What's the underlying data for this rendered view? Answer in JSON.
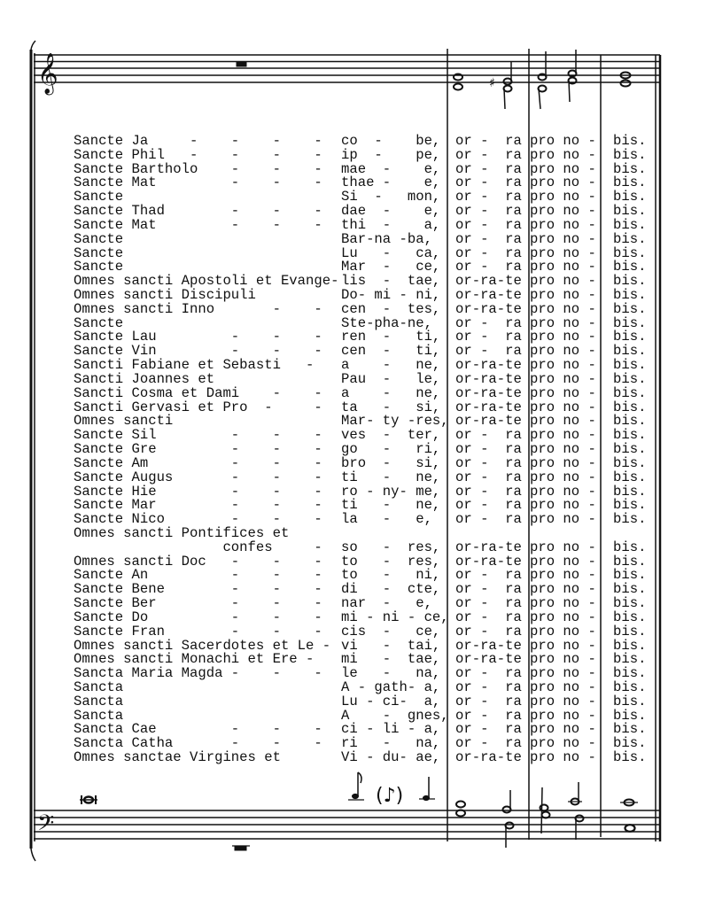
{
  "rows": [
    {
      "left": "Sancte Ja     -    -    -    -",
      "mid": "co  -    be,",
      "ora": "or -  ra",
      "pro": "pro no -",
      "bis": "bis."
    },
    {
      "left": "Sancte Phil   -    -    -    -",
      "mid": "ip  -    pe,",
      "ora": "or -  ra",
      "pro": "pro no -",
      "bis": "bis."
    },
    {
      "left": "Sancte Bartholo    -    -    -",
      "mid": "mae  -    e,",
      "ora": "or -  ra",
      "pro": "pro no -",
      "bis": "bis."
    },
    {
      "left": "Sancte Mat         -    -    -",
      "mid": "thae -    e,",
      "ora": "or -  ra",
      "pro": "pro no -",
      "bis": "bis."
    },
    {
      "left": "Sancte",
      "mid": "Si  -   mon,",
      "ora": "or -  ra",
      "pro": "pro no -",
      "bis": "bis."
    },
    {
      "left": "Sancte Thad        -    -    -",
      "mid": "dae  -    e,",
      "ora": "or -  ra",
      "pro": "pro no -",
      "bis": "bis."
    },
    {
      "left": "Sancte Mat         -    -    -",
      "mid": "thi  -    a,",
      "ora": "or -  ra",
      "pro": "pro no -",
      "bis": "bis."
    },
    {
      "left": "Sancte",
      "mid": "Bar-na -ba,",
      "ora": "or -  ra",
      "pro": "pro no -",
      "bis": "bis."
    },
    {
      "left": "Sancte",
      "mid": "Lu   -   ca,",
      "ora": "or -  ra",
      "pro": "pro no -",
      "bis": "bis."
    },
    {
      "left": "Sancte",
      "mid": "Mar  -   ce,",
      "ora": "or -  ra",
      "pro": "pro no -",
      "bis": "bis."
    },
    {
      "left": "Omnes sancti Apostoli et Evange-",
      "mid": "lis  -  tae,",
      "ora": "or-ra-te",
      "pro": "pro no -",
      "bis": "bis."
    },
    {
      "left": "Omnes sancti Discipuli",
      "mid": "Do- mi - ni,",
      "ora": "or-ra-te",
      "pro": "pro no -",
      "bis": "bis."
    },
    {
      "left": "Omnes sancti Inno       -    -",
      "mid": "cen  -  tes,",
      "ora": "or-ra-te",
      "pro": "pro no -",
      "bis": "bis."
    },
    {
      "left": "Sancte",
      "mid": "Ste-pha-ne,",
      "ora": "or -  ra",
      "pro": "pro no -",
      "bis": "bis."
    },
    {
      "left": "Sancte Lau         -    -    -",
      "mid": "ren  -   ti,",
      "ora": "or -  ra",
      "pro": "pro no -",
      "bis": "bis."
    },
    {
      "left": "Sancte Vin         -    -    -",
      "mid": "cen  -   ti,",
      "ora": "or -  ra",
      "pro": "pro no -",
      "bis": "bis."
    },
    {
      "left": "Sancti Fabiane et Sebasti   -",
      "mid": "a    -   ne,",
      "ora": "or-ra-te",
      "pro": "pro no -",
      "bis": "bis."
    },
    {
      "left": "Sancti Joannes et",
      "mid": "Pau  -   le,",
      "ora": "or-ra-te",
      "pro": "pro no -",
      "bis": "bis."
    },
    {
      "left": "Sancti Cosma et Dami    -    -",
      "mid": "a    -   ne,",
      "ora": "or-ra-te",
      "pro": "pro no -",
      "bis": "bis."
    },
    {
      "left": "Sancti Gervasi et Pro  -     -",
      "mid": "ta   -   si,",
      "ora": "or-ra-te",
      "pro": "pro no -",
      "bis": "bis."
    },
    {
      "left": "Omnes sancti",
      "mid": "Mar- ty -res,",
      "ora": "or-ra-te",
      "pro": "pro no -",
      "bis": "bis."
    },
    {
      "left": "Sancte Sil         -    -    -",
      "mid": "ves  -  ter,",
      "ora": "or -  ra",
      "pro": "pro no -",
      "bis": "bis."
    },
    {
      "left": "Sancte Gre         -    -    -",
      "mid": "go   -   ri,",
      "ora": "or -  ra",
      "pro": "pro no -",
      "bis": "bis."
    },
    {
      "left": "Sancte Am          -    -    -",
      "mid": "bro  -   si,",
      "ora": "or -  ra",
      "pro": "pro no -",
      "bis": "bis."
    },
    {
      "left": "Sancte Augus       -    -    -",
      "mid": "ti   -   ne,",
      "ora": "or -  ra",
      "pro": "pro no -",
      "bis": "bis."
    },
    {
      "left": "Sancte Hie         -    -    -",
      "mid": "ro - ny- me,",
      "ora": "or -  ra",
      "pro": "pro no -",
      "bis": "bis."
    },
    {
      "left": "Sancte Mar         -    -    -",
      "mid": "ti   -   ne,",
      "ora": "or -  ra",
      "pro": "pro no -",
      "bis": "bis."
    },
    {
      "left": "Sancte Nico        -    -    -",
      "mid": "la   -   e,",
      "ora": "or -  ra",
      "pro": "pro no -",
      "bis": "bis."
    },
    {
      "left": "Omnes sancti Pontifices et",
      "mid": "",
      "ora": "",
      "pro": "",
      "bis": ""
    },
    {
      "left": "                  confes     -",
      "mid": "so   -  res,",
      "ora": "or-ra-te",
      "pro": "pro no -",
      "bis": "bis."
    },
    {
      "left": "Omnes sancti Doc   -    -    -",
      "mid": "to   -  res,",
      "ora": "or-ra-te",
      "pro": "pro no -",
      "bis": "bis."
    },
    {
      "left": "Sancte An          -    -    -",
      "mid": "to   -   ni,",
      "ora": "or -  ra",
      "pro": "pro no -",
      "bis": "bis."
    },
    {
      "left": "Sancte Bene        -    -    -",
      "mid": "di   -  cte,",
      "ora": "or -  ra",
      "pro": "pro no -",
      "bis": "bis."
    },
    {
      "left": "Sancte Ber         -    -    -",
      "mid": "nar  -   e,",
      "ora": "or -  ra",
      "pro": "pro no -",
      "bis": "bis."
    },
    {
      "left": "Sancte Do          -    -    -",
      "mid": "mi - ni - ce,",
      "ora": "or -  ra",
      "pro": "pro no -",
      "bis": "bis."
    },
    {
      "left": "Sancte Fran        -    -    -",
      "mid": "cis  -   ce,",
      "ora": "or -  ra",
      "pro": "pro no -",
      "bis": "bis."
    },
    {
      "left": "Omnes sancti Sacerdotes et Le -",
      "mid": "vi   -  tai,",
      "ora": "or-ra-te",
      "pro": "pro no -",
      "bis": "bis."
    },
    {
      "left": "Omnes sancti Monachi et Ere -",
      "mid": "mi   -  tae,",
      "ora": "or-ra-te",
      "pro": "pro no -",
      "bis": "bis."
    },
    {
      "left": "Sancta Maria Magda -    -    -",
      "mid": "le   -   na,",
      "ora": "or -  ra",
      "pro": "pro no -",
      "bis": "bis."
    },
    {
      "left": "Sancta",
      "mid": "A - gath- a,",
      "ora": "or -  ra",
      "pro": "pro no -",
      "bis": "bis."
    },
    {
      "left": "Sancta",
      "mid": "Lu - ci-  a,",
      "ora": "or -  ra",
      "pro": "pro no -",
      "bis": "bis."
    },
    {
      "left": "Sancta",
      "mid": "A    -  gnes,",
      "ora": "or -  ra",
      "pro": "pro no -",
      "bis": "bis."
    },
    {
      "left": "Sancta Cae         -    -    -",
      "mid": "ci - li - a,",
      "ora": "or -  ra",
      "pro": "pro no -",
      "bis": "bis."
    },
    {
      "left": "Sancta Catha       -    -    -",
      "mid": "ri   -   na,",
      "ora": "or -  ra",
      "pro": "pro no -",
      "bis": "bis."
    },
    {
      "left": "Omnes sanctae Virgines et",
      "mid": "Vi - du- ae,",
      "ora": "or-ra-te",
      "pro": "pro no -",
      "bis": "bis."
    }
  ],
  "score": {
    "treble_clef_icon": "treble-clef",
    "bass_clef_icon": "bass-clef",
    "ink_color": "#111111"
  }
}
